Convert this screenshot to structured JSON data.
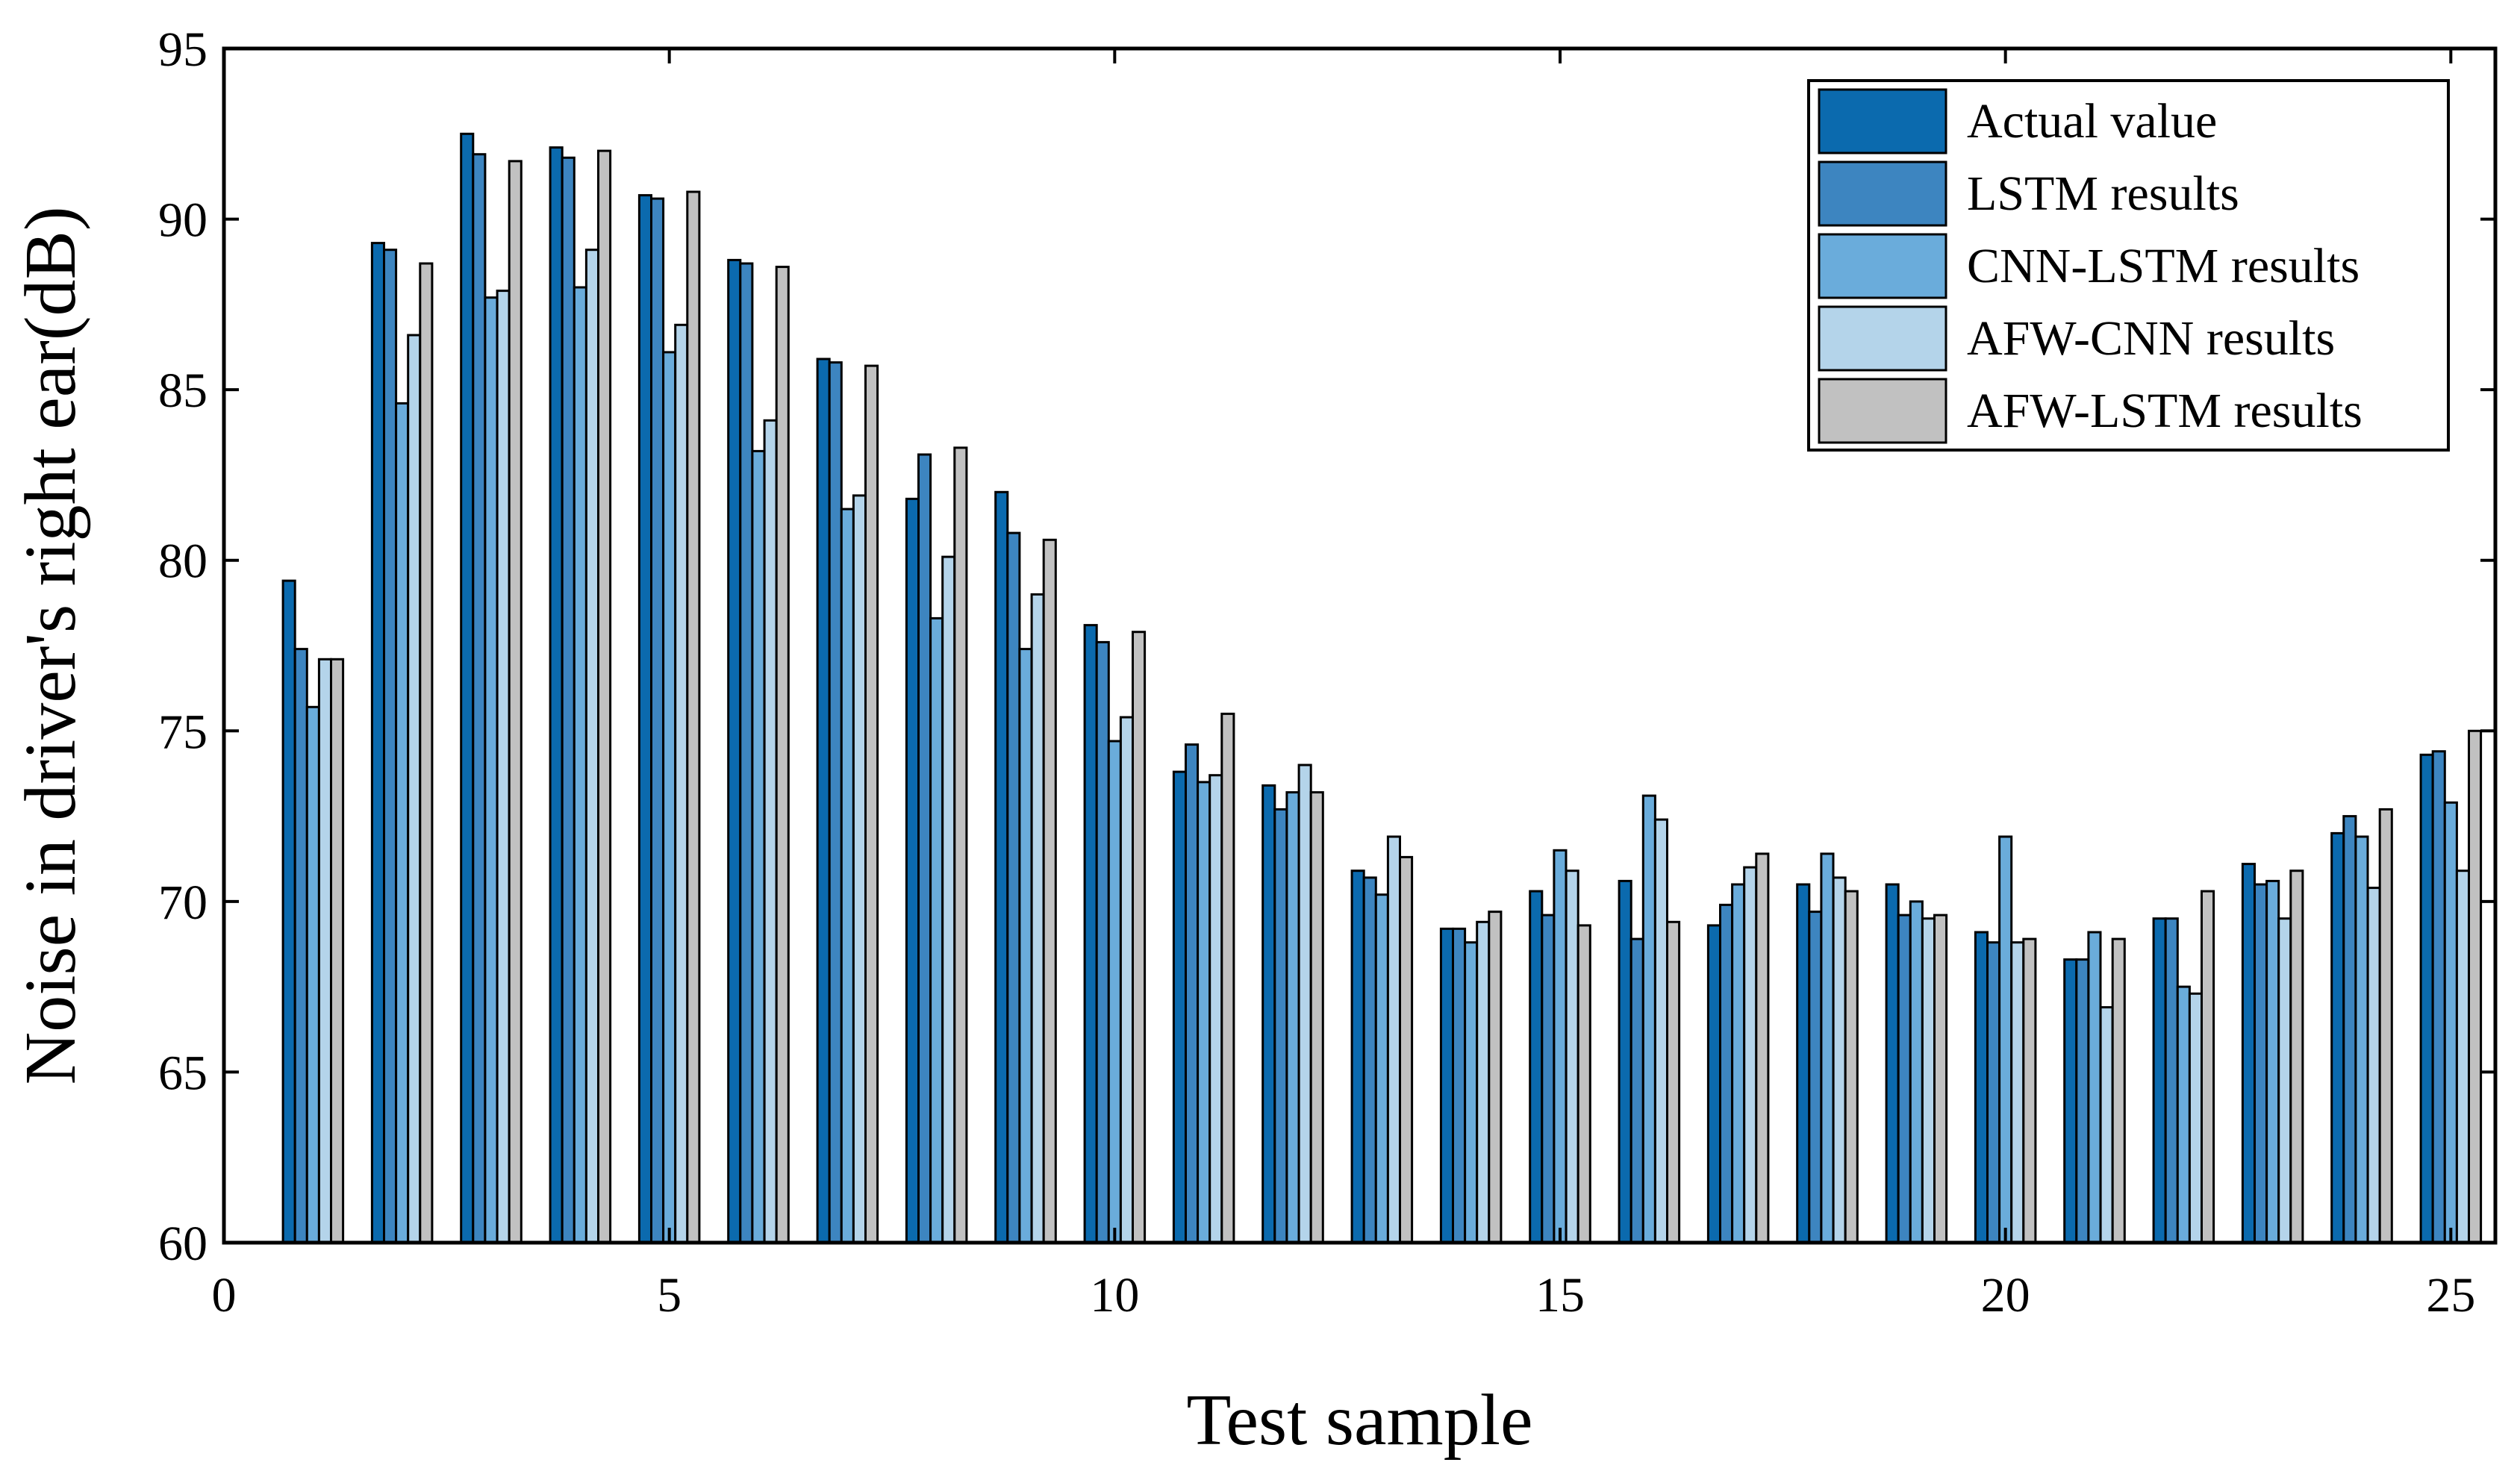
{
  "chart_data": {
    "type": "bar",
    "title": "",
    "xlabel": "Test sample",
    "ylabel": "Noise in driver's right ear(dB)",
    "xlim": [
      0,
      25.5
    ],
    "ylim": [
      60,
      95
    ],
    "xticks": [
      0,
      5,
      10,
      15,
      20,
      25
    ],
    "yticks": [
      60,
      65,
      70,
      75,
      80,
      85,
      90,
      95
    ],
    "legend_position": "top-right",
    "categories": [
      1,
      2,
      3,
      4,
      5,
      6,
      7,
      8,
      9,
      10,
      11,
      12,
      13,
      14,
      15,
      16,
      17,
      18,
      19,
      20,
      21,
      22,
      23,
      24,
      25
    ],
    "series": [
      {
        "name": "Actual value",
        "color": "#0B6AAE",
        "values": [
          79.4,
          89.3,
          92.5,
          92.1,
          90.7,
          88.8,
          85.9,
          81.8,
          82.0,
          78.1,
          73.8,
          73.4,
          70.9,
          69.2,
          70.3,
          70.6,
          69.3,
          70.5,
          70.5,
          69.1,
          68.3,
          69.5,
          71.1,
          72.0,
          74.3
        ]
      },
      {
        "name": "LSTM results",
        "color": "#3D85C0",
        "values": [
          77.4,
          89.1,
          91.9,
          91.8,
          90.6,
          88.7,
          85.8,
          83.1,
          80.8,
          77.6,
          74.6,
          72.7,
          70.7,
          69.2,
          69.6,
          68.9,
          69.9,
          69.7,
          69.6,
          68.8,
          68.3,
          69.5,
          70.5,
          72.5,
          74.4
        ]
      },
      {
        "name": "CNN-LSTM results",
        "color": "#6AACDB",
        "values": [
          75.7,
          84.6,
          87.7,
          88.0,
          86.1,
          83.2,
          81.5,
          78.3,
          77.4,
          74.7,
          73.5,
          73.2,
          70.2,
          68.8,
          71.5,
          73.1,
          70.5,
          71.4,
          70.0,
          71.9,
          69.1,
          67.5,
          70.6,
          71.9,
          72.9
        ]
      },
      {
        "name": "AFW-CNN results",
        "color": "#B4D4EA",
        "values": [
          77.1,
          86.6,
          87.9,
          89.1,
          86.9,
          84.1,
          81.9,
          80.1,
          79.0,
          75.4,
          73.7,
          74.0,
          71.9,
          69.4,
          70.9,
          72.4,
          71.0,
          70.7,
          69.5,
          68.8,
          66.9,
          67.3,
          69.5,
          70.4,
          70.9
        ]
      },
      {
        "name": "AFW-LSTM results",
        "color": "#C1C1C1",
        "values": [
          77.1,
          88.7,
          91.7,
          92.0,
          90.8,
          88.6,
          85.7,
          83.3,
          80.6,
          77.9,
          75.5,
          73.2,
          71.3,
          69.7,
          69.3,
          69.4,
          71.4,
          70.3,
          69.6,
          68.9,
          68.9,
          70.3,
          70.9,
          72.7,
          75.0
        ]
      }
    ]
  }
}
